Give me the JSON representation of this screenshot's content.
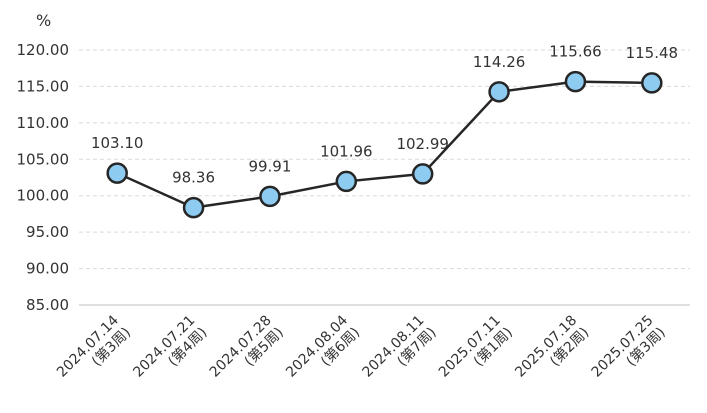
{
  "chart_data": {
    "type": "line",
    "y_unit": "%",
    "categories": [
      [
        "2024.07.14",
        "(第3周)"
      ],
      [
        "2024.07.21",
        "(第4周)"
      ],
      [
        "2024.07.28",
        "(第5周)"
      ],
      [
        "2024.08.04",
        "(第6周)"
      ],
      [
        "2024.08.11",
        "(第7周)"
      ],
      [
        "2025.07.11",
        "(第1周)"
      ],
      [
        "2025.07.18",
        "(第2周)"
      ],
      [
        "2025.07.25",
        "(第3周)"
      ]
    ],
    "values": [
      103.1,
      98.36,
      99.91,
      101.96,
      102.99,
      114.26,
      115.66,
      115.48
    ],
    "data_labels": [
      "103.10",
      "98.36",
      "99.91",
      "101.96",
      "102.99",
      "114.26",
      "115.66",
      "115.48"
    ],
    "ylim": [
      85,
      120
    ],
    "yticks": [
      "85.00",
      "90.00",
      "95.00",
      "100.00",
      "105.00",
      "110.00",
      "115.00",
      "120.00"
    ],
    "grid": true,
    "colors": {
      "line": "#262626",
      "marker_fill": "#8ECBF0",
      "marker_stroke": "#262626",
      "grid": "#d9d9d9",
      "axis": "#bfbfbf"
    }
  }
}
